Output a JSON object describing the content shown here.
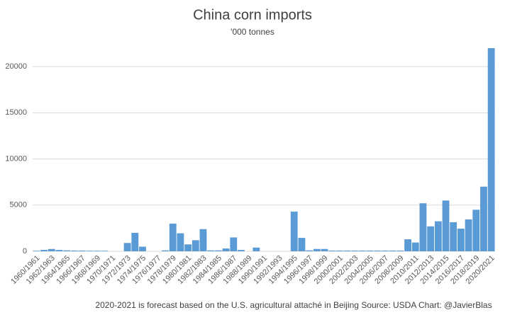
{
  "chart_data": {
    "type": "bar",
    "title": "China corn imports",
    "subtitle": "'000 tonnes",
    "note": "2020-2021 is forecast based on the U.S. agricultural attaché in Beijing  Source: USDA   Chart: @JavierBlas",
    "categories": [
      "1960/1961",
      null,
      "1962/1963",
      null,
      "1964/1965",
      null,
      "1966/1967",
      null,
      "1968/1969",
      null,
      "1970/1971",
      null,
      "1972/1973",
      null,
      "1974/1975",
      null,
      "1976/1977",
      null,
      "1978/1979",
      null,
      "1980/1981",
      null,
      "1982/1983",
      null,
      "1984/1985",
      null,
      "1986/1987",
      null,
      "1988/1989",
      null,
      "1990/1991",
      null,
      "1992/1993",
      null,
      "1994/1995",
      null,
      "1996/1997",
      null,
      "1998/1999",
      null,
      "2000/2001",
      null,
      "2002/2003",
      null,
      "2004/2005",
      null,
      "2006/2007",
      null,
      "2008/2009",
      null,
      "2010/2011",
      null,
      "2012/2013",
      null,
      "2014/2015",
      null,
      "2016/2017",
      null,
      "2018/2019",
      null,
      "2020/2021"
    ],
    "values": [
      60,
      150,
      250,
      150,
      100,
      80,
      80,
      60,
      60,
      60,
      0,
      0,
      900,
      2000,
      500,
      0,
      0,
      100,
      3000,
      1950,
      750,
      1200,
      2400,
      100,
      100,
      300,
      1500,
      150,
      0,
      400,
      0,
      0,
      0,
      0,
      4300,
      1450,
      100,
      250,
      250,
      80,
      80,
      80,
      80,
      80,
      80,
      80,
      80,
      80,
      80,
      1300,
      950,
      5200,
      2700,
      3250,
      5500,
      3150,
      2450,
      3450,
      4500,
      7000,
      22000
    ],
    "color": "#5b9bd5",
    "ylim": [
      0,
      22000
    ],
    "yticks": [
      0,
      5000,
      10000,
      15000,
      20000
    ],
    "grid": true
  }
}
